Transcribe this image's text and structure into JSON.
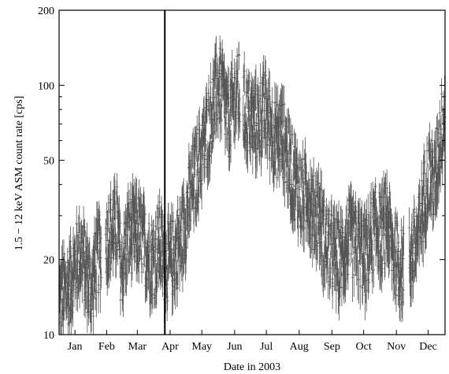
{
  "chart_data": {
    "type": "scatter",
    "title": "",
    "xlabel": "Date in 2003",
    "ylabel": "1.5 − 12 keV  ASM count rate  [cps]",
    "yscale": "log",
    "ylim": [
      10,
      200
    ],
    "xlim": [
      0,
      365
    ],
    "y_ticks": [
      10,
      20,
      50,
      100,
      200
    ],
    "x_tick_labels": [
      "Jan",
      "Feb",
      "Mar",
      "Apr",
      "May",
      "Jun",
      "Jul",
      "Aug",
      "Sep",
      "Oct",
      "Nov",
      "Dec"
    ],
    "x_tick_positions": [
      15,
      45,
      74,
      105,
      135,
      166,
      196,
      227,
      258,
      288,
      319,
      349
    ],
    "vertical_line_x": 100,
    "grid": false,
    "legend": "none",
    "marker_color": "#555555",
    "series": [
      {
        "values_desc": "daily ASM count rate envelope (day, median cps)",
        "x": [
          0,
          10,
          20,
          31,
          35,
          45,
          55,
          59,
          65,
          75,
          85,
          90,
          95,
          100,
          105,
          110,
          115,
          120,
          125,
          130,
          135,
          140,
          145,
          150,
          155,
          160,
          165,
          170,
          175,
          180,
          185,
          190,
          195,
          200,
          205,
          210,
          215,
          220,
          225,
          230,
          235,
          240,
          245,
          250,
          255,
          260,
          265,
          270,
          275,
          280,
          285,
          290,
          295,
          300,
          305,
          310,
          315,
          320,
          325,
          330,
          335,
          340,
          345,
          350,
          355,
          360,
          365
        ],
        "y": [
          14,
          16,
          22,
          15,
          20,
          24,
          28,
          18,
          25,
          26,
          21,
          20,
          24,
          19,
          20,
          21,
          24,
          30,
          38,
          45,
          55,
          65,
          80,
          100,
          95,
          70,
          85,
          95,
          80,
          75,
          70,
          75,
          80,
          70,
          60,
          65,
          55,
          45,
          40,
          35,
          38,
          30,
          32,
          25,
          22,
          21,
          20,
          22,
          25,
          23,
          22,
          20,
          24,
          28,
          25,
          30,
          22,
          20,
          18,
          20,
          22,
          25,
          35,
          45,
          40,
          60,
          80
        ]
      }
    ]
  }
}
